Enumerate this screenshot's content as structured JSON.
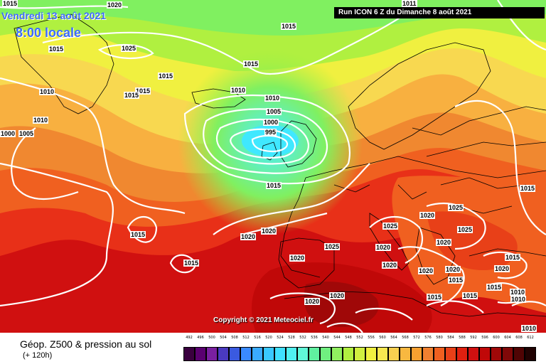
{
  "header": {
    "date": "Vendredi 13 août 2021",
    "time": "8:00 locale",
    "run": "Run ICON 6 Z du Dimanche 8 août 2021"
  },
  "copyright": "Copyright © 2021 Meteociel.fr",
  "footer": {
    "title": "Géop. Z500 & pression au sol",
    "subtitle": "(+ 120h)"
  },
  "legend": {
    "ticks": [
      "492",
      "496",
      "500",
      "504",
      "508",
      "512",
      "516",
      "520",
      "524",
      "528",
      "532",
      "536",
      "540",
      "544",
      "548",
      "552",
      "556",
      "560",
      "564",
      "568",
      "572",
      "576",
      "580",
      "584",
      "588",
      "592",
      "596",
      "600",
      "604",
      "608",
      "612"
    ],
    "colors": [
      "#3a003f",
      "#5a0070",
      "#7a20a0",
      "#4a3ac0",
      "#3a5ae0",
      "#3a8aff",
      "#3aaaff",
      "#3ac8ff",
      "#40e0ff",
      "#50f0f0",
      "#60f8d8",
      "#60f0a0",
      "#70f080",
      "#90f060",
      "#b0f040",
      "#d0f040",
      "#f0f040",
      "#f8e850",
      "#f8d050",
      "#f8b840",
      "#f8a030",
      "#f08030",
      "#f06020",
      "#e84018",
      "#e02010",
      "#d01010",
      "#c00808",
      "#a00808",
      "#800808",
      "#500404",
      "#200202"
    ]
  },
  "isobars": [
    {
      "text": "1020"
    },
    {
      "text": "1015"
    },
    {
      "text": "1015"
    },
    {
      "text": "1025"
    },
    {
      "text": "1015"
    },
    {
      "text": "1015"
    },
    {
      "text": "1010"
    },
    {
      "text": "1015"
    },
    {
      "text": "1015"
    },
    {
      "text": "1010"
    },
    {
      "text": "1000"
    },
    {
      "text": "1005"
    },
    {
      "text": "1010"
    },
    {
      "text": "1010"
    },
    {
      "text": "1005"
    },
    {
      "text": "1000"
    },
    {
      "text": "995"
    },
    {
      "text": "1015"
    },
    {
      "text": "1015"
    },
    {
      "text": "1020"
    },
    {
      "text": "1020"
    },
    {
      "text": "1025"
    },
    {
      "text": "1025"
    },
    {
      "text": "1025"
    },
    {
      "text": "1025"
    },
    {
      "text": "1020"
    },
    {
      "text": "1020"
    },
    {
      "text": "1020"
    },
    {
      "text": "1020"
    },
    {
      "text": "1020"
    },
    {
      "text": "1020"
    },
    {
      "text": "1020"
    },
    {
      "text": "1015"
    },
    {
      "text": "1015"
    },
    {
      "text": "1015"
    },
    {
      "text": "1010"
    },
    {
      "text": "1010"
    },
    {
      "text": "1010"
    },
    {
      "text": "1015"
    },
    {
      "text": "1015"
    },
    {
      "text": "1020"
    },
    {
      "text": "1015"
    },
    {
      "text": "1020"
    },
    {
      "text": "1015"
    },
    {
      "text": "1020"
    },
    {
      "text": "1011"
    },
    {
      "text": "1015"
    }
  ]
}
